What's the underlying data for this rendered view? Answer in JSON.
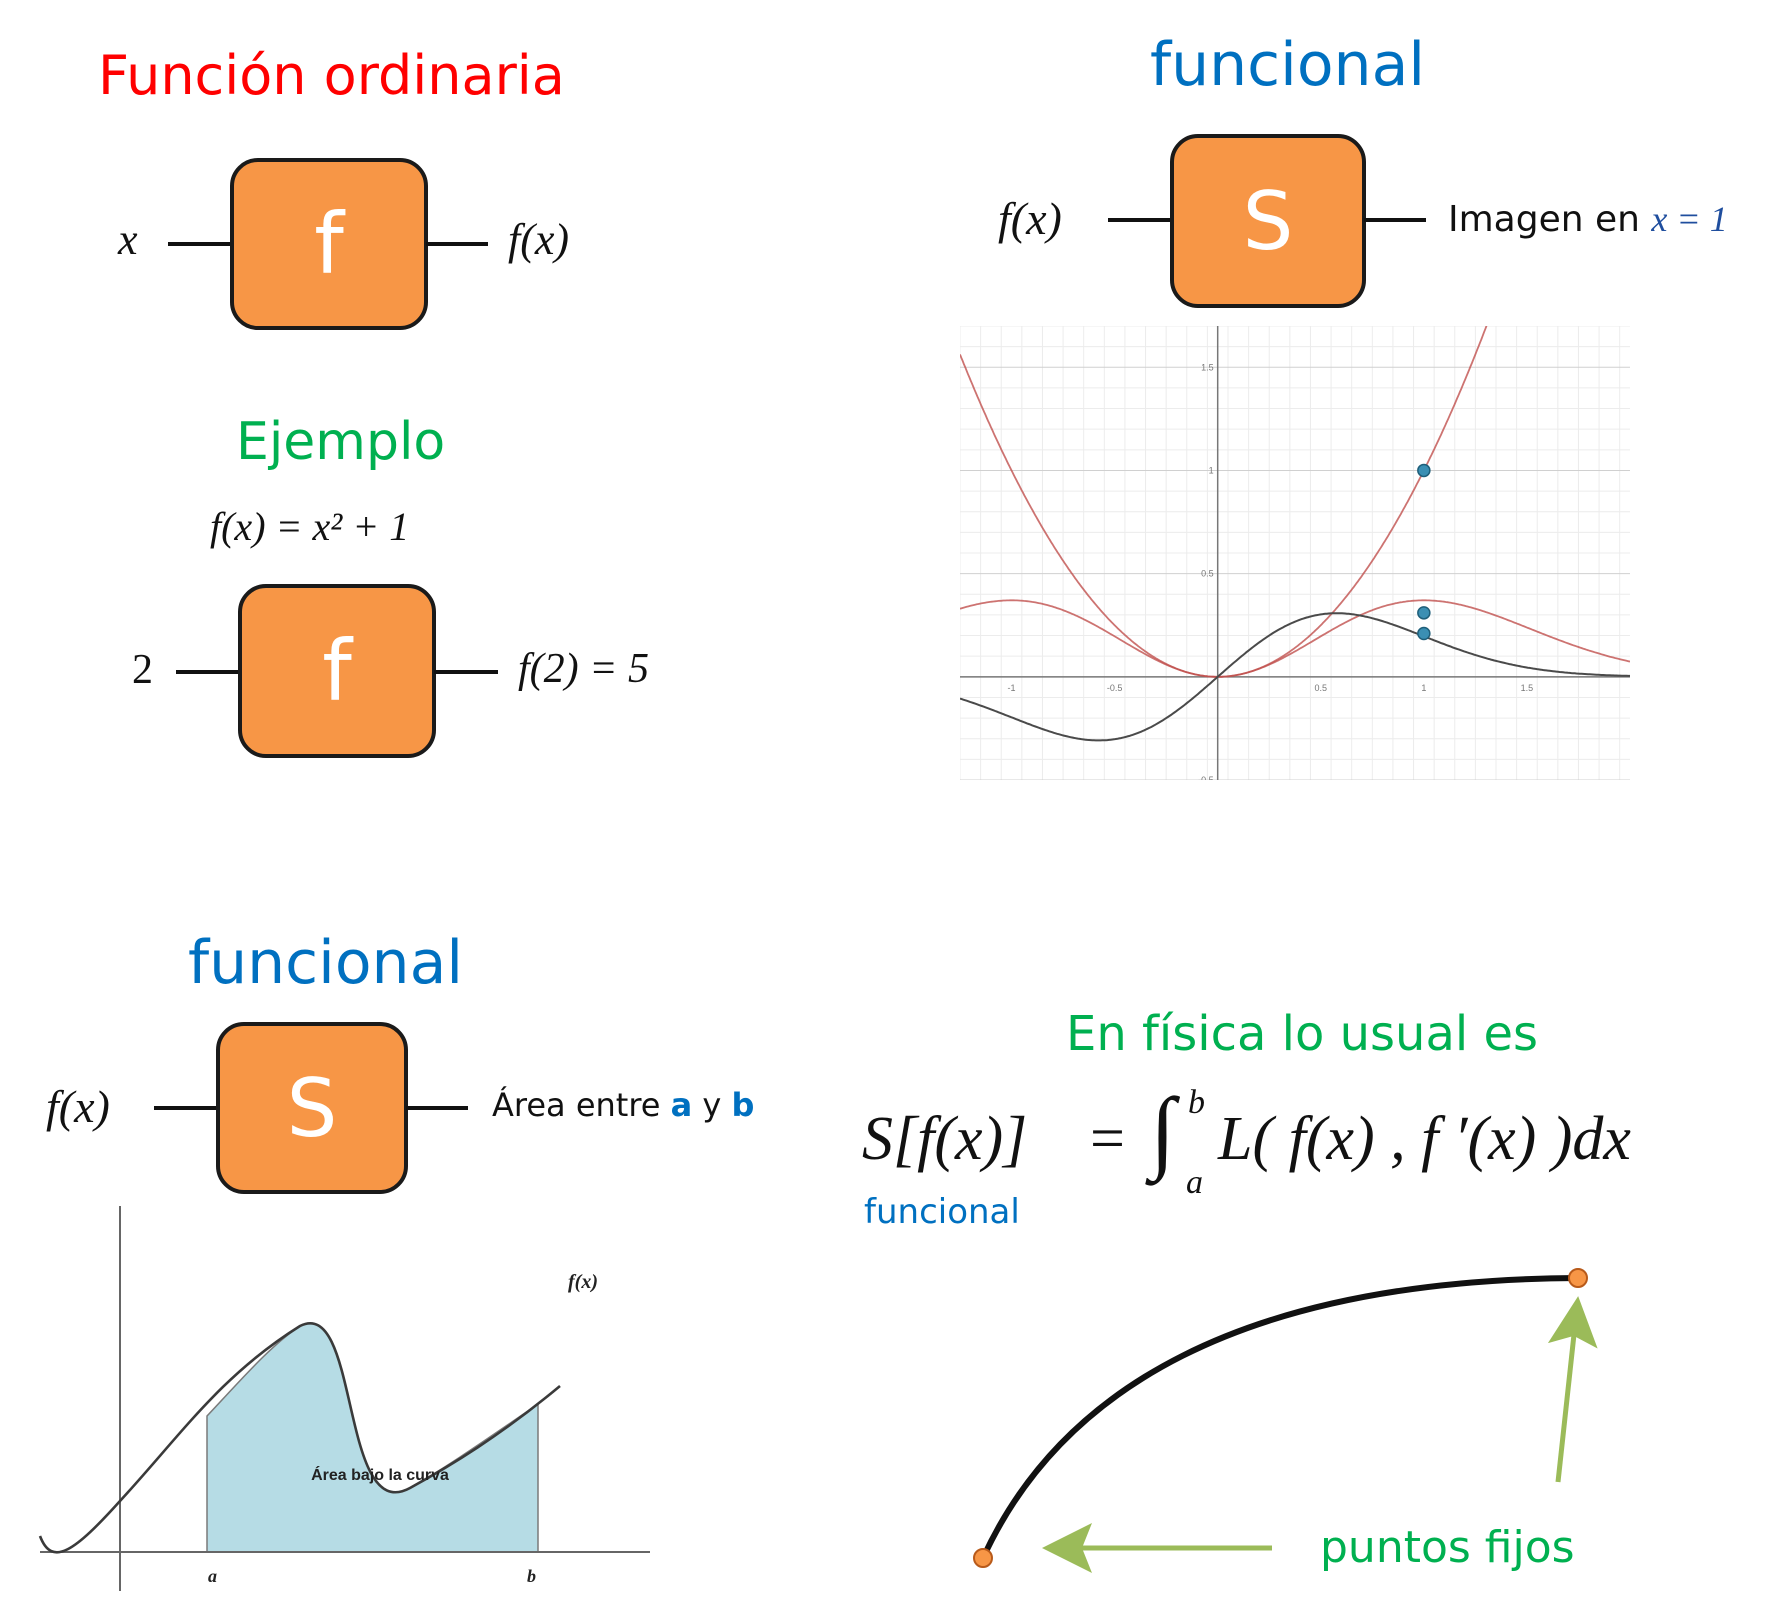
{
  "colors": {
    "red": "#ff0000",
    "green": "#00b050",
    "blue": "#0070c0",
    "box": "#f79646",
    "arrow_green": "#9bbb59",
    "fixed_point": "#f79646"
  },
  "q1": {
    "title": "Función ordinaria",
    "input": "x",
    "box_label": "f",
    "output": "f(x)",
    "example_title": "Ejemplo",
    "formula": "f(x) = x² + 1",
    "example_input": "2",
    "example_box_label": "f",
    "example_output": "f(2) = 5"
  },
  "q2": {
    "title": "funcional",
    "input": "f(x)",
    "box_label": "S",
    "output_prefix": "Imagen en ",
    "output_math": "x = 1",
    "graph": {
      "x_ticks": [
        "-1",
        "-0.5",
        "0.5",
        "1",
        "1.5"
      ],
      "y_ticks": [
        "1.5",
        "1",
        "0.5",
        "-0.5"
      ]
    }
  },
  "q3": {
    "title": "funcional",
    "input": "f(x)",
    "box_label": "S",
    "output_prefix": "Área entre ",
    "a": "a",
    "y": " y ",
    "b": "b",
    "graph": {
      "curve_label": "f(x)",
      "area_label": "Área bajo la curva",
      "a_tick": "a",
      "b_tick": "b"
    }
  },
  "q4": {
    "title": "En física lo usual es",
    "formula_lhs": "S[f(x)]",
    "formula_rhs": "= ∫ₐᵇ L( f(x) , f ′(x) )dx",
    "integral_upper": "b",
    "integral_lower": "a",
    "integrand": "L( f(x) , f ′(x) )dx",
    "lhs_caption": "funcional",
    "fixed_points_label": "puntos fijos"
  }
}
